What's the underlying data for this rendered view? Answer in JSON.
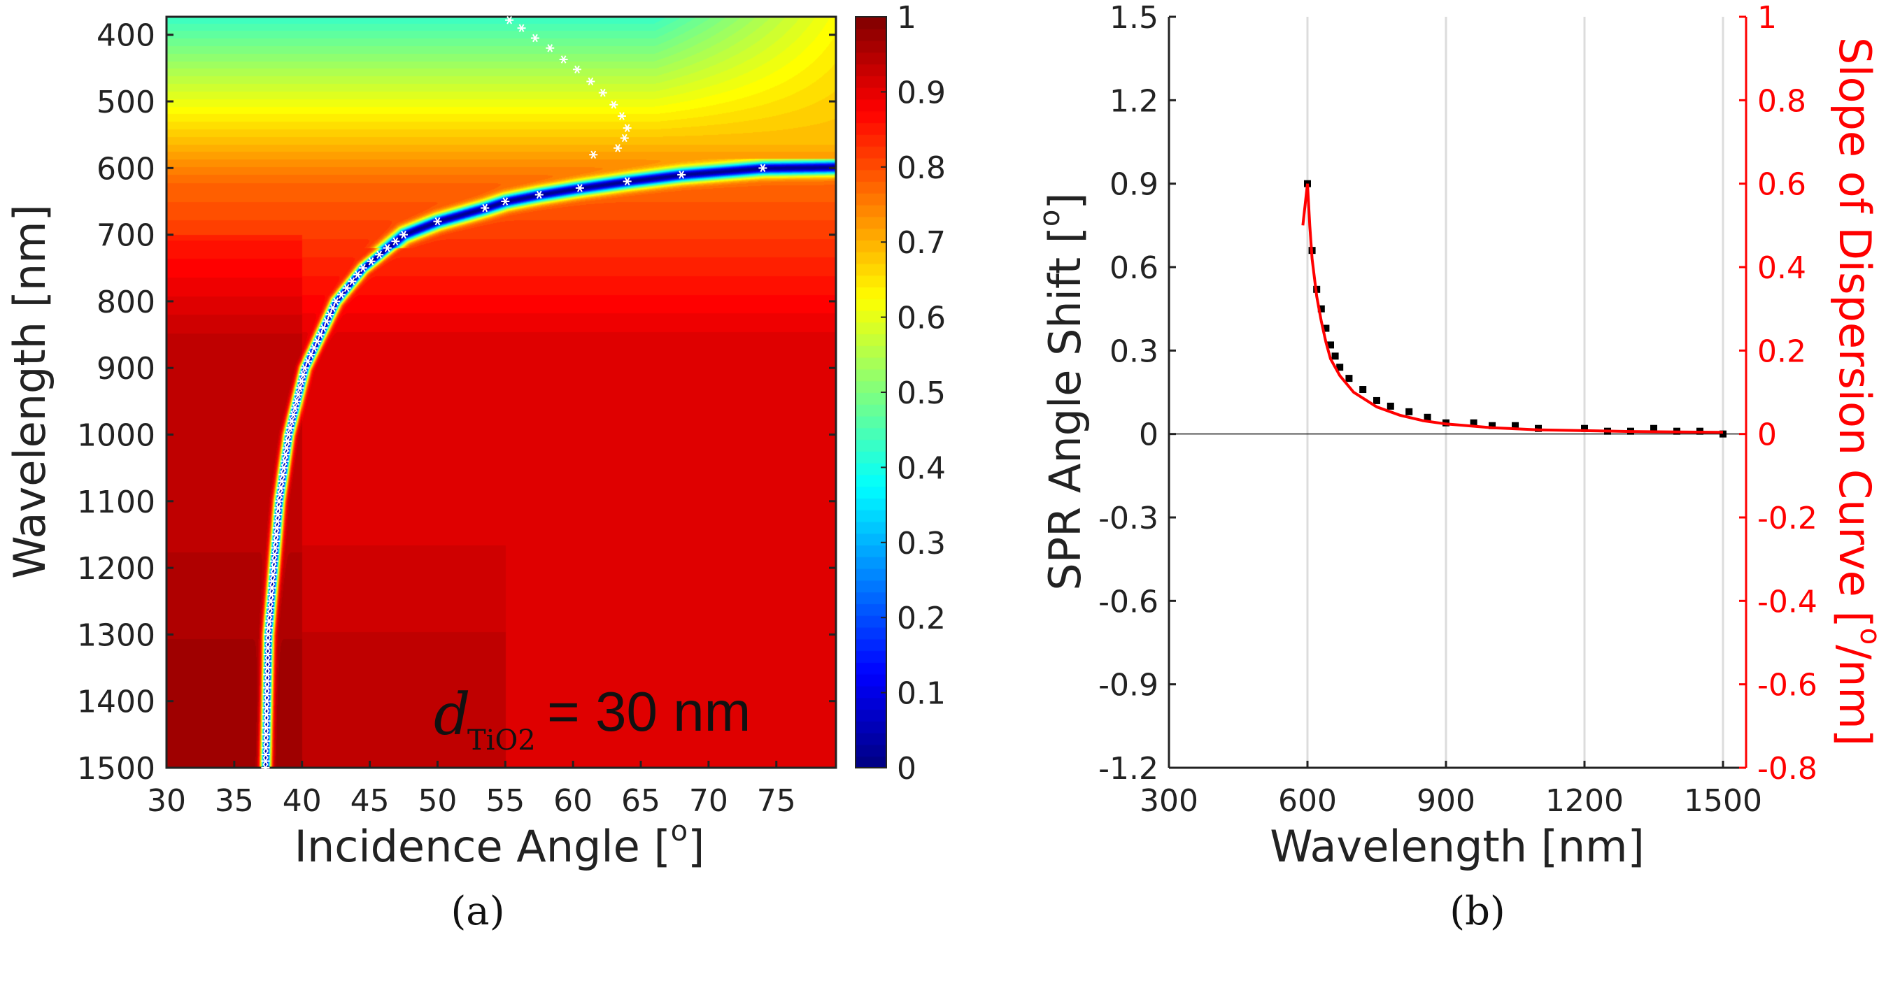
{
  "chart_data": [
    {
      "type": "heatmap",
      "panel_label": "(a)",
      "xlabel": "Incidence Angle [",
      "xlabel_sup": "o",
      "xlabel_end": "]",
      "ylabel": "Wavelength [nm]",
      "xlim": [
        30,
        79.4
      ],
      "ylim": [
        373,
        1500
      ],
      "y_reversed": true,
      "xticks": [
        "30",
        "35",
        "40",
        "45",
        "50",
        "55",
        "60",
        "65",
        "70",
        "75"
      ],
      "yticks": [
        "400",
        "500",
        "600",
        "700",
        "800",
        "900",
        "1000",
        "1100",
        "1200",
        "1300",
        "1400",
        "1500"
      ],
      "colorbar": {
        "range": [
          0,
          1
        ],
        "ticks": [
          "0",
          "0.1",
          "0.2",
          "0.3",
          "0.4",
          "0.5",
          "0.6",
          "0.7",
          "0.8",
          "0.9",
          "1"
        ],
        "colormap": "jet"
      },
      "annotation": {
        "symbol": "d",
        "subscript": "TiO2",
        "text": "= 30 nm"
      },
      "resonance_curve": {
        "angle": [
          37.3,
          37.5,
          38.3,
          39.0,
          40.2,
          42.5,
          44.5,
          47.5,
          50.0,
          53.5,
          55.0,
          57.5,
          60.5,
          64.0,
          68.0,
          74.0
        ],
        "wavelength": [
          1500,
          1300,
          1100,
          1000,
          900,
          800,
          750,
          700,
          680,
          660,
          650,
          640,
          630,
          620,
          610,
          600
        ]
      },
      "upper_branch": {
        "angle": [
          55.3,
          56.2,
          57.2,
          58.3,
          59.3,
          60.3,
          61.3,
          62.2,
          63.0,
          63.6,
          64.0,
          63.8,
          63.3
        ],
        "wavelength": [
          378,
          390,
          405,
          420,
          437,
          452,
          470,
          487,
          505,
          522,
          540,
          555,
          570
        ]
      },
      "isolated_point": {
        "angle": 61.5,
        "wavelength": 580
      }
    },
    {
      "type": "line",
      "panel_label": "(b)",
      "xlabel": "Wavelength [nm]",
      "ylabel": "SPR Angle Shift [",
      "ylabel_sup": "o",
      "ylabel_end": "]",
      "y2label": "Slope of Dispersion Curve [",
      "y2label_sup": "o",
      "y2label_end": "/nm]",
      "xlim": [
        300,
        1550
      ],
      "ylim": [
        -1.2,
        1.5
      ],
      "y2lim": [
        -0.8,
        1.0
      ],
      "xticks": [
        "300",
        "600",
        "900",
        "1200",
        "1500"
      ],
      "yticks": [
        "-1.2",
        "-0.9",
        "-0.6",
        "-0.3",
        "0",
        "0.3",
        "0.6",
        "0.9",
        "1.2",
        "1.5"
      ],
      "y2ticks": [
        "-0.8",
        "-0.6",
        "-0.4",
        "-0.2",
        "0",
        "0.2",
        "0.4",
        "0.6",
        "0.8",
        "1"
      ],
      "grid": "vertical",
      "colors": {
        "shift": "#000000",
        "slope": "#ff0000"
      },
      "series": [
        {
          "name": "SPR Angle Shift",
          "axis": "left",
          "style": "markers",
          "x": [
            600,
            610,
            620,
            630,
            640,
            650,
            660,
            670,
            690,
            720,
            750,
            780,
            820,
            860,
            900,
            960,
            1000,
            1050,
            1100,
            1200,
            1250,
            1300,
            1350,
            1400,
            1450,
            1500
          ],
          "y": [
            0.9,
            0.66,
            0.52,
            0.45,
            0.38,
            0.32,
            0.28,
            0.24,
            0.2,
            0.16,
            0.12,
            0.1,
            0.08,
            0.06,
            0.04,
            0.04,
            0.03,
            0.03,
            0.02,
            0.02,
            0.01,
            0.01,
            0.02,
            0.01,
            0.01,
            0.0
          ]
        },
        {
          "name": "Slope of Dispersion Curve",
          "axis": "right",
          "style": "line",
          "x": [
            590,
            595,
            600,
            605,
            610,
            620,
            630,
            640,
            650,
            670,
            700,
            750,
            800,
            850,
            900,
            1000,
            1100,
            1200,
            1300,
            1400,
            1500
          ],
          "y": [
            0.5,
            0.55,
            0.6,
            0.5,
            0.42,
            0.33,
            0.27,
            0.22,
            0.18,
            0.14,
            0.1,
            0.065,
            0.045,
            0.032,
            0.024,
            0.015,
            0.01,
            0.008,
            0.006,
            0.005,
            0.004
          ]
        }
      ]
    }
  ]
}
